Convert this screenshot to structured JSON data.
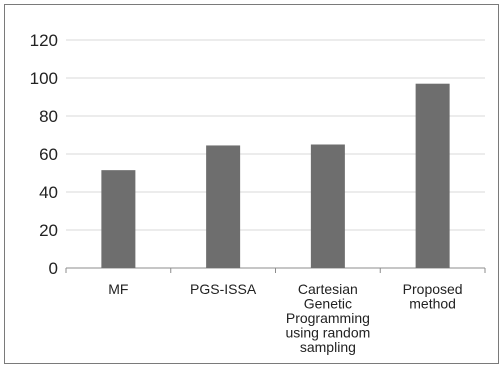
{
  "chart_data": {
    "type": "bar",
    "title": "",
    "xlabel": "",
    "ylabel": "",
    "categories": [
      [
        "MF"
      ],
      [
        "PGS-ISSA"
      ],
      [
        "Cartesian",
        "Genetic",
        "Programming",
        "using random",
        "sampling"
      ],
      [
        "Proposed",
        "method"
      ]
    ],
    "values": [
      51.5,
      64.5,
      65,
      97
    ],
    "ylim": [
      0,
      120
    ],
    "yticks": [
      0,
      20,
      40,
      60,
      80,
      100,
      120
    ],
    "grid": true,
    "legend": "none",
    "bar_color": "#6e6e6e",
    "grid_color": "#d9d9d9",
    "axis_color": "#8c8c8c"
  }
}
